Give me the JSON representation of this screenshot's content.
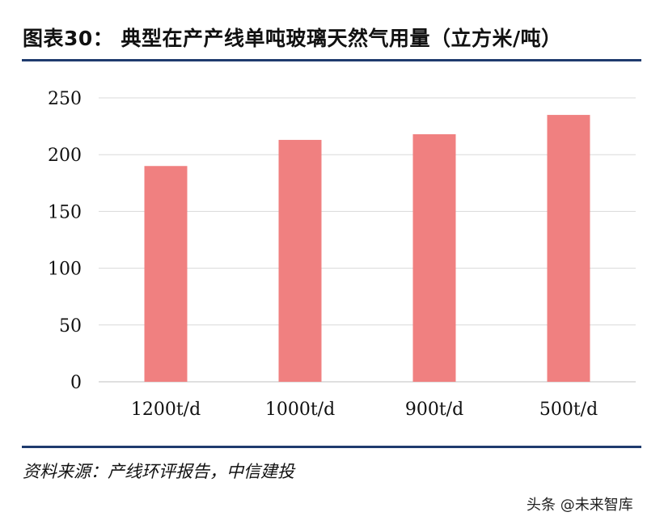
{
  "figure": {
    "title": "图表30：  典型在产产线单吨玻璃天然气用量（立方米/吨）",
    "source": "资料来源：产线环评报告，中信建投",
    "watermark": "头条 @未来智库"
  },
  "chart_data": {
    "type": "bar",
    "title": "典型在产产线单吨玻璃天然气用量（立方米/吨）",
    "categories": [
      "1200t/d",
      "1000t/d",
      "900t/d",
      "500t/d"
    ],
    "values": [
      190,
      213,
      218,
      235
    ],
    "yticks": [
      0,
      50,
      100,
      150,
      200,
      250
    ],
    "ylim": [
      0,
      250
    ],
    "xlabel": "",
    "ylabel": "",
    "grid": true,
    "legend": "none",
    "colors": {
      "bar": "#f08080",
      "grid": "#d9d9d9",
      "axis": "#bfbfbf"
    }
  }
}
